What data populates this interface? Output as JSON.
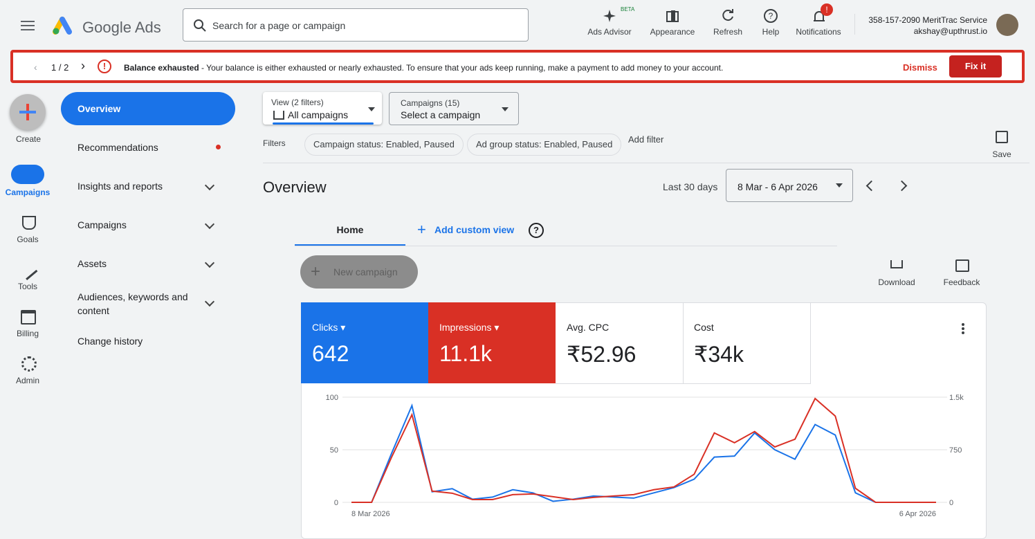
{
  "header": {
    "product": "Google Ads",
    "search_placeholder": "Search for a page or campaign",
    "beta": "BETA",
    "notification_badge": "!",
    "actions": [
      "Ads Advisor",
      "Appearance",
      "Refresh",
      "Help",
      "Notifications"
    ],
    "account": "358-157-2090 MeritTrac Service",
    "email": "akshay@upthrust.io"
  },
  "banner": {
    "pager": "1 / 2",
    "title": "Balance exhausted",
    "message": " - Your balance is either exhausted or nearly exhausted. To ensure that your ads keep running, make a payment to add money to your account.",
    "dismiss": "Dismiss",
    "fix": "Fix it"
  },
  "rail": [
    "Create",
    "Campaigns",
    "Goals",
    "Tools",
    "Billing",
    "Admin"
  ],
  "nav": [
    "Overview",
    "Recommendations",
    "Insights and reports",
    "Campaigns",
    "Assets",
    "Audiences, keywords and content",
    "Change history"
  ],
  "filters": {
    "view_label": "View (2 filters)",
    "view_value": "All campaigns",
    "campaigns_label": "Campaigns (15)",
    "campaigns_value": "Select a campaign",
    "label": "Filters",
    "chips": [
      "Campaign status: Enabled, Paused",
      "Ad group status: Enabled, Paused"
    ],
    "add": "Add filter",
    "save": "Save"
  },
  "overview": {
    "title": "Overview",
    "range_label": "Last 30 days",
    "range": "8 Mar - 6 Apr 2026",
    "tabs": [
      "Home",
      "Add custom view"
    ],
    "new_campaign": "New campaign",
    "download": "Download",
    "feedback": "Feedback"
  },
  "metrics": [
    {
      "value": "642"
    },
    {
      "value": "11.1k"
    },
    {
      "label": "Avg. CPC",
      "value": "₹52.96"
    },
    {
      "label": "Cost",
      "value": "₹34k"
    }
  ],
  "chart_data": {
    "type": "line",
    "categories": [
      "8 Mar 2026",
      null,
      null,
      null,
      null,
      null,
      null,
      null,
      null,
      null,
      null,
      null,
      null,
      null,
      null,
      null,
      null,
      null,
      null,
      null,
      null,
      null,
      null,
      null,
      null,
      null,
      null,
      null,
      null,
      "6 Apr 2026"
    ],
    "series": [
      {
        "name": "Clicks",
        "color": "#1a73e8",
        "values": [
          0,
          0,
          47,
          92,
          10,
          13,
          3,
          5,
          12,
          9,
          1,
          3,
          6,
          5,
          4,
          9,
          14,
          22,
          43,
          44,
          66,
          50,
          41,
          74,
          64,
          9,
          0,
          0,
          0,
          0
        ]
      },
      {
        "name": "Impressions",
        "color": "#d93025",
        "axis": "y2",
        "values": [
          0,
          0,
          650,
          1250,
          160,
          130,
          40,
          40,
          110,
          120,
          80,
          40,
          70,
          90,
          110,
          180,
          220,
          400,
          990,
          850,
          1010,
          790,
          900,
          1480,
          1230,
          200,
          0,
          0,
          0,
          0
        ]
      }
    ],
    "ylim": [
      0,
      100
    ],
    "yticks": [
      0,
      50,
      100
    ],
    "y2lim": [
      0,
      1500
    ],
    "y2ticks": [
      0,
      750,
      {
        "value": 1500,
        "label": "1.5k"
      }
    ],
    "grid": true
  }
}
